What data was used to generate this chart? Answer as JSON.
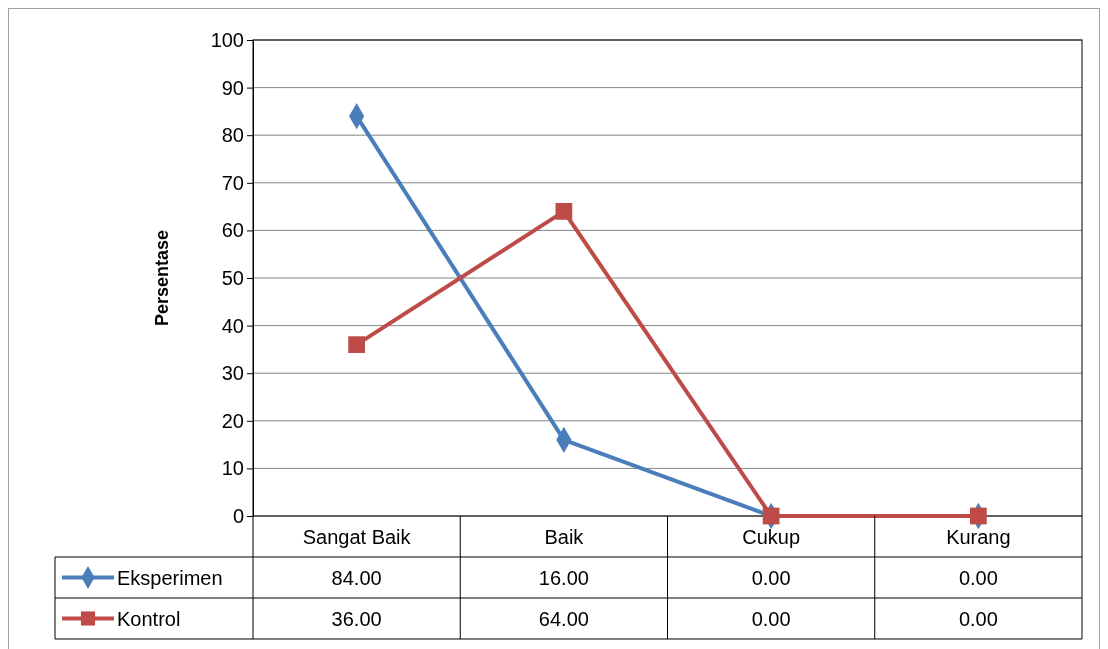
{
  "chart_data": {
    "type": "line",
    "ylabel": "Persentase",
    "categories": [
      "Sangat Baik",
      "Baik",
      "Cukup",
      "Kurang"
    ],
    "series": [
      {
        "name": "Eksperimen",
        "color": "#4a7ebb",
        "marker": "diamond",
        "values": [
          84,
          16,
          0,
          0
        ],
        "value_labels": [
          "84.00",
          "16.00",
          "0.00",
          "0.00"
        ]
      },
      {
        "name": "Kontrol",
        "color": "#be4b48",
        "marker": "square",
        "values": [
          36,
          64,
          0,
          0
        ],
        "value_labels": [
          "36.00",
          "64.00",
          "0.00",
          "0.00"
        ]
      }
    ],
    "ylim": [
      0,
      100
    ],
    "yticks": [
      0,
      10,
      20,
      30,
      40,
      50,
      60,
      70,
      80,
      90,
      100
    ],
    "grid": "y",
    "legend": "bottom",
    "line_style": "solid"
  }
}
